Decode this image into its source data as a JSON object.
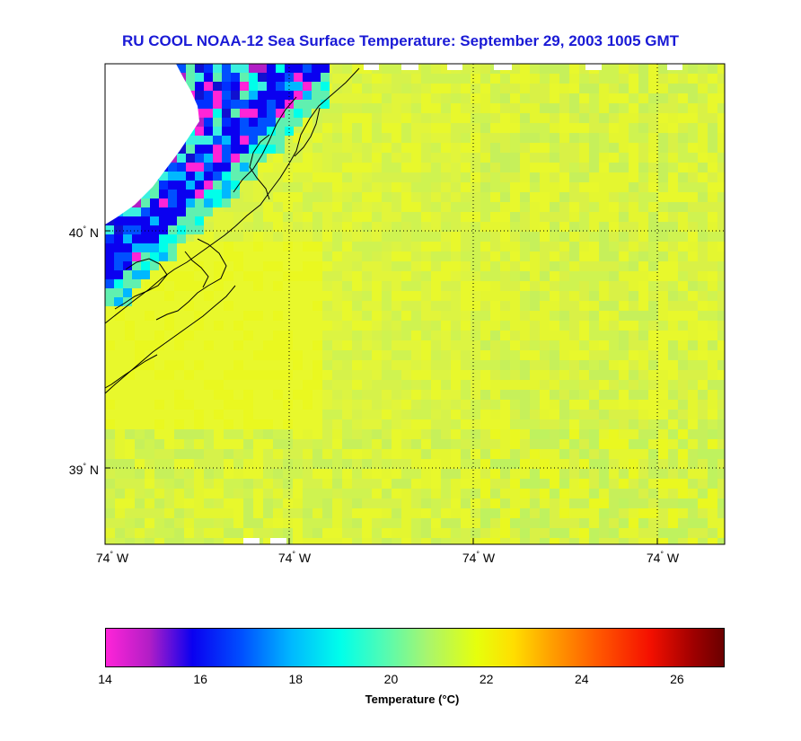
{
  "title": "RU COOL  NOAA-12  Sea Surface Temperature:  September 29, 2003 1005 GMT",
  "lat_labels": [
    "40",
    "39"
  ],
  "lat_suffix": "N",
  "lon_labels": [
    "74",
    "74",
    "74",
    "74"
  ],
  "lon_suffix": "W",
  "colorbar": {
    "ticks": [
      "14",
      "16",
      "18",
      "20",
      "22",
      "24",
      "26"
    ],
    "label": "Temperature (°C)",
    "min": 14,
    "max": 27
  },
  "palette": {
    "ocean_main": "#e2f53a",
    "ocean_warm": "#eaf820",
    "ocean_cool": "#bff25e",
    "cold_magenta": "#ff24d8",
    "cold_blue": "#0a00f0",
    "cold_cyan": "#00ffea",
    "coast_line": "#000000",
    "title_color": "#1a1ad6"
  }
}
